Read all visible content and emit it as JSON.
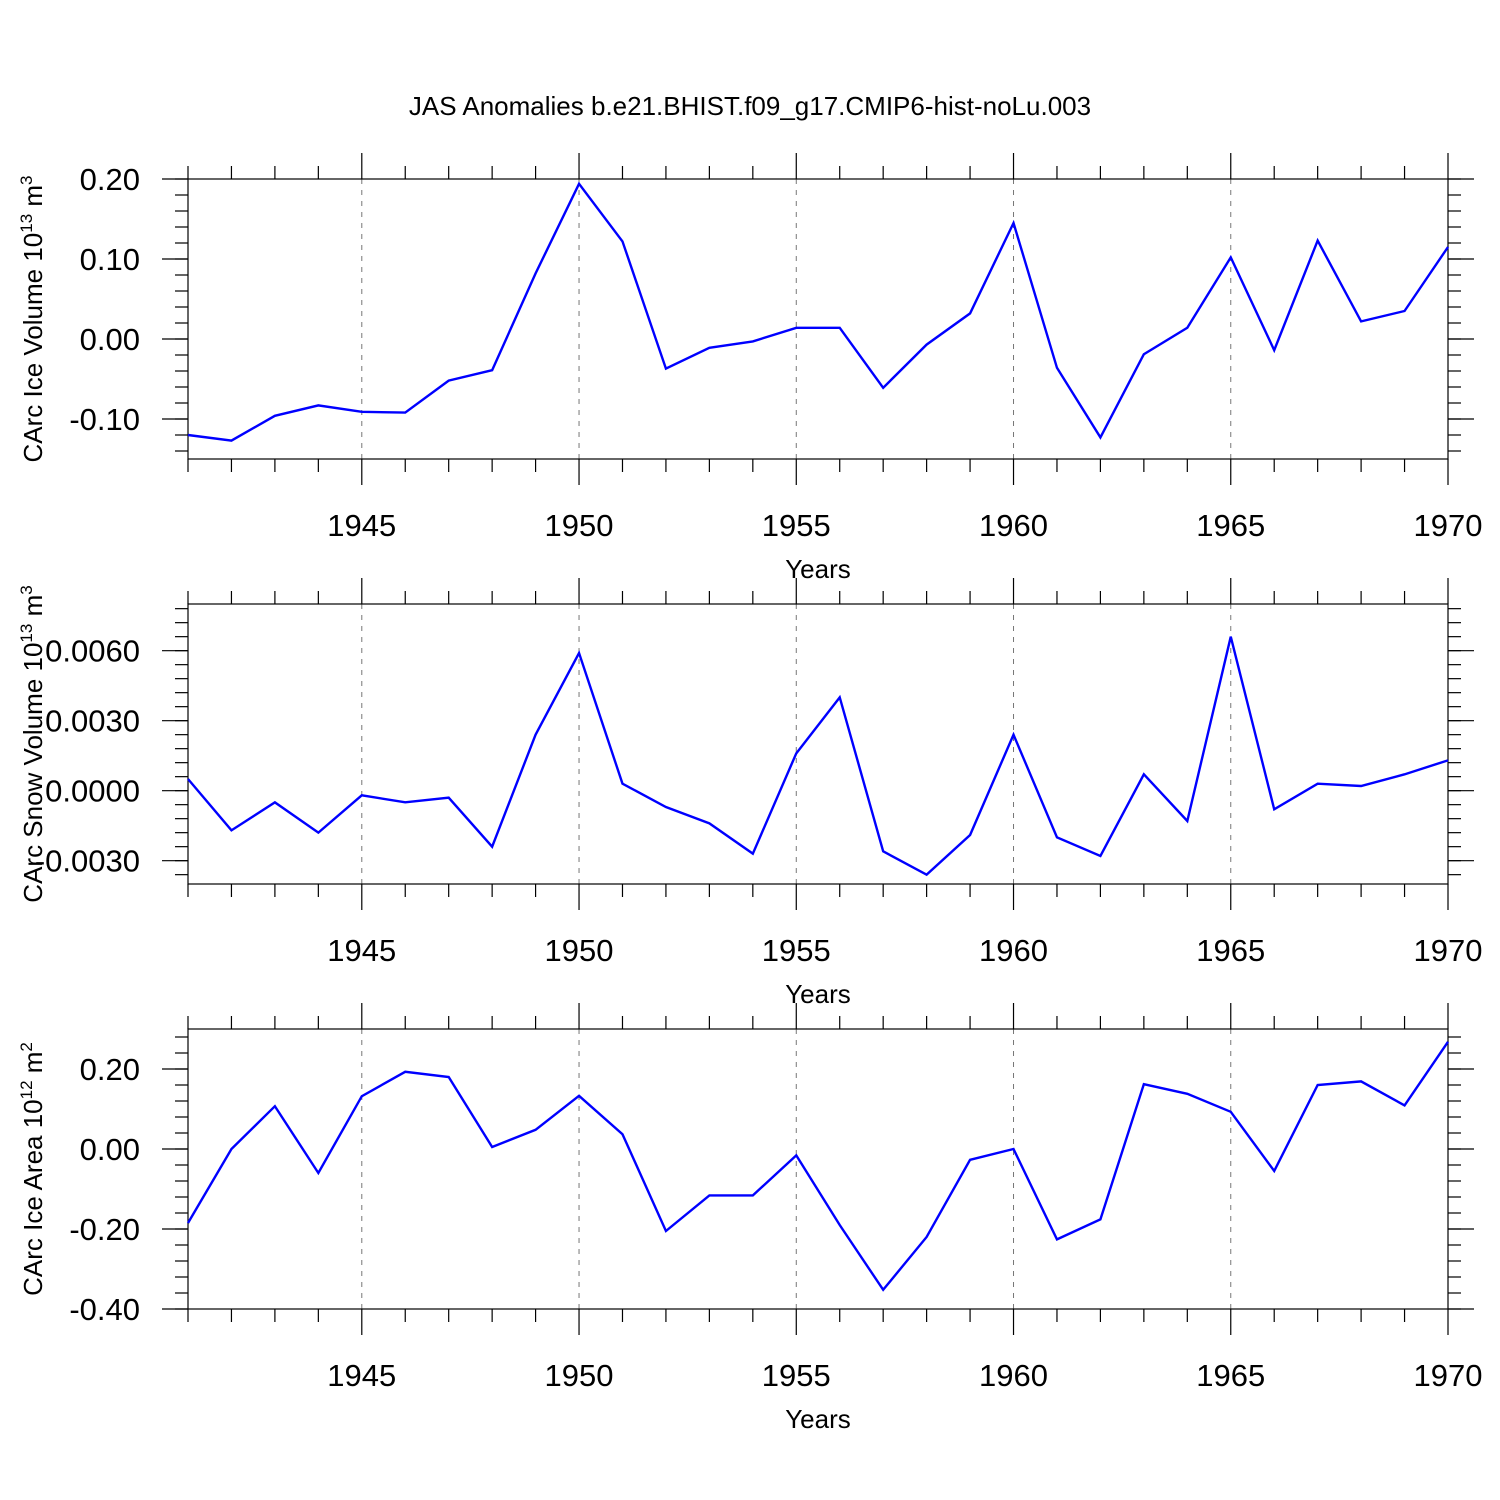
{
  "title": "JAS Anomalies b.e21.BHIST.f09_g17.CMIP6-hist-noLu.003",
  "chart_data": [
    {
      "type": "line",
      "ylabel_main": "CArc Ice Volume 10",
      "ylabel_sup": "13",
      "ylabel_tail": " m",
      "ylabel_sup2": "3",
      "xlabel": "Years",
      "xlim": [
        1941,
        1970
      ],
      "ylim": [
        -0.15,
        0.2
      ],
      "x_ticks": [
        "1945",
        "1950",
        "1955",
        "1960",
        "1965",
        "1970"
      ],
      "y_ticks": [
        "0.20",
        "0.10",
        "0.00",
        "-0.10"
      ],
      "x": [
        1941,
        1942,
        1943,
        1944,
        1945,
        1946,
        1947,
        1948,
        1949,
        1950,
        1951,
        1952,
        1953,
        1954,
        1955,
        1956,
        1957,
        1958,
        1959,
        1960,
        1961,
        1962,
        1963,
        1964,
        1965,
        1966,
        1967,
        1968,
        1969,
        1970
      ],
      "values": [
        -0.12,
        -0.127,
        -0.096,
        -0.083,
        -0.091,
        -0.092,
        -0.052,
        -0.039,
        0.082,
        0.194,
        0.122,
        -0.037,
        -0.011,
        -0.003,
        0.014,
        0.014,
        -0.061,
        -0.007,
        0.032,
        0.145,
        -0.036,
        -0.123,
        -0.019,
        0.014,
        0.102,
        -0.014,
        0.123,
        0.022,
        0.035,
        0.115
      ]
    },
    {
      "type": "line",
      "ylabel_main": "CArc Snow Volume 10",
      "ylabel_sup": "13",
      "ylabel_tail": " m",
      "ylabel_sup2": "3",
      "xlabel": "Years",
      "xlim": [
        1941,
        1970
      ],
      "ylim": [
        -0.004,
        0.008
      ],
      "x_ticks": [
        "1945",
        "1950",
        "1955",
        "1960",
        "1965",
        "1970"
      ],
      "y_ticks": [
        "0.0060",
        "0.0030",
        "0.0000",
        "-0.0030"
      ],
      "x": [
        1941,
        1942,
        1943,
        1944,
        1945,
        1946,
        1947,
        1948,
        1949,
        1950,
        1951,
        1952,
        1953,
        1954,
        1955,
        1956,
        1957,
        1958,
        1959,
        1960,
        1961,
        1962,
        1963,
        1964,
        1965,
        1966,
        1967,
        1968,
        1969,
        1970
      ],
      "values": [
        0.0005,
        -0.0017,
        -0.0005,
        -0.0018,
        -0.0002,
        -0.0005,
        -0.0003,
        -0.0024,
        0.0024,
        0.0059,
        0.0003,
        -0.0007,
        -0.0014,
        -0.0027,
        0.0016,
        0.004,
        -0.0026,
        -0.0036,
        -0.0019,
        0.0024,
        -0.002,
        -0.0028,
        0.0007,
        -0.0013,
        0.0066,
        -0.0008,
        0.0003,
        0.0002,
        0.0007,
        0.0013
      ]
    },
    {
      "type": "line",
      "ylabel_main": "CArc Ice Area 10",
      "ylabel_sup": "12",
      "ylabel_tail": " m",
      "ylabel_sup2": "2",
      "xlabel": "Years",
      "xlim": [
        1941,
        1970
      ],
      "ylim": [
        -0.4,
        0.3
      ],
      "x_ticks": [
        "1945",
        "1950",
        "1955",
        "1960",
        "1965",
        "1970"
      ],
      "y_ticks": [
        "0.20",
        "0.00",
        "-0.20",
        "-0.40"
      ],
      "x": [
        1941,
        1942,
        1943,
        1944,
        1945,
        1946,
        1947,
        1948,
        1949,
        1950,
        1951,
        1952,
        1953,
        1954,
        1955,
        1956,
        1957,
        1958,
        1959,
        1960,
        1961,
        1962,
        1963,
        1964,
        1965,
        1966,
        1967,
        1968,
        1969,
        1970
      ],
      "values": [
        -0.185,
        0.0,
        0.107,
        -0.06,
        0.132,
        0.193,
        0.18,
        0.005,
        0.048,
        0.133,
        0.037,
        -0.205,
        -0.116,
        -0.116,
        -0.016,
        -0.19,
        -0.352,
        -0.22,
        -0.027,
        0.0,
        -0.226,
        -0.176,
        0.162,
        0.138,
        0.093,
        -0.055,
        0.16,
        0.169,
        0.109,
        0.268
      ]
    }
  ]
}
